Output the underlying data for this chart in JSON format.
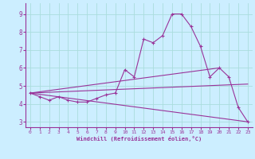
{
  "xlabel": "Windchill (Refroidissement éolien,°C)",
  "bg_color": "#cceeff",
  "line_color": "#993399",
  "grid_color": "#aadddd",
  "xlim": [
    -0.5,
    23.5
  ],
  "ylim": [
    2.7,
    9.6
  ],
  "xticks": [
    0,
    1,
    2,
    3,
    4,
    5,
    6,
    7,
    8,
    9,
    10,
    11,
    12,
    13,
    14,
    15,
    16,
    17,
    18,
    19,
    20,
    21,
    22,
    23
  ],
  "yticks": [
    3,
    4,
    5,
    6,
    7,
    8,
    9
  ],
  "main_x": [
    0,
    1,
    2,
    3,
    4,
    5,
    6,
    7,
    8,
    9,
    10,
    11,
    12,
    13,
    14,
    15,
    16,
    17,
    18,
    19,
    20,
    21,
    22,
    23
  ],
  "main_y": [
    4.6,
    4.4,
    4.2,
    4.4,
    4.2,
    4.1,
    4.1,
    4.3,
    4.5,
    4.6,
    5.9,
    5.5,
    7.6,
    7.4,
    7.8,
    9.0,
    9.0,
    8.3,
    7.2,
    5.5,
    6.0,
    5.5,
    3.8,
    3.0
  ],
  "trend1_x": [
    0,
    23
  ],
  "trend1_y": [
    4.6,
    3.0
  ],
  "trend2_x": [
    0,
    20
  ],
  "trend2_y": [
    4.6,
    6.0
  ],
  "trend3_x": [
    0,
    23
  ],
  "trend3_y": [
    4.6,
    5.1
  ]
}
